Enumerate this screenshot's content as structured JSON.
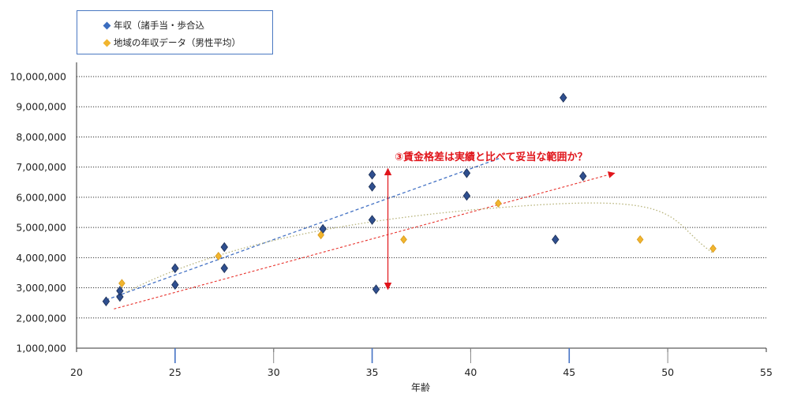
{
  "chart_data": {
    "type": "scatter",
    "xlabel": "年齢",
    "ylabel": "",
    "xlim": [
      20,
      55
    ],
    "ylim": [
      1000000,
      10000000
    ],
    "xticks": [
      "20",
      "25",
      "30",
      "35",
      "40",
      "45",
      "50",
      "55"
    ],
    "yticks": [
      "1,000,000",
      "2,000,000",
      "3,000,000",
      "4,000,000",
      "5,000,000",
      "6,000,000",
      "7,000,000",
      "8,000,000",
      "9,000,000",
      "10,000,000"
    ],
    "grid": "horizontal-dotted",
    "legend_position": "top-left",
    "annotation": "③賃金格差は実績と比べて妥当な範囲か？",
    "series": [
      {
        "name": "年収（諸手当・歩合込",
        "color": "#2f4f8f",
        "marker": "diamond",
        "points": [
          [
            21.5,
            2550000
          ],
          [
            22.2,
            2700000
          ],
          [
            22.2,
            2900000
          ],
          [
            25.0,
            3100000
          ],
          [
            25.0,
            3650000
          ],
          [
            27.5,
            3650000
          ],
          [
            27.5,
            4350000
          ],
          [
            32.5,
            4950000
          ],
          [
            35.0,
            6350000
          ],
          [
            35.0,
            6750000
          ],
          [
            35.0,
            5250000
          ],
          [
            35.2,
            2950000
          ],
          [
            39.8,
            6800000
          ],
          [
            39.8,
            6050000
          ],
          [
            44.3,
            4600000
          ],
          [
            44.7,
            9300000
          ],
          [
            45.7,
            6700000
          ]
        ]
      },
      {
        "name": "地域の年収データ（男性平均）",
        "color": "#f1b52e",
        "marker": "diamond",
        "points": [
          [
            22.3,
            3150000
          ],
          [
            27.2,
            4050000
          ],
          [
            32.4,
            4750000
          ],
          [
            36.6,
            4600000
          ],
          [
            41.4,
            5800000
          ],
          [
            48.6,
            4600000
          ],
          [
            52.3,
            4300000
          ]
        ]
      }
    ],
    "trendlines": [
      {
        "series": "年収（諸手当・歩合込",
        "kind": "linear",
        "color": "#4472c4",
        "from": [
          21.5,
          2600000
        ],
        "to": [
          41.5,
          7300000
        ]
      },
      {
        "series": "reference",
        "kind": "linear-arrow",
        "color": "#e8322c",
        "from": [
          21.9,
          2300000
        ],
        "to": [
          47.3,
          6800000
        ]
      },
      {
        "series": "地域の年収データ（男性平均）",
        "kind": "polynomial",
        "color": "#b7b37a"
      }
    ],
    "range_marker": {
      "x": 35.8,
      "from": 2950000,
      "to": 6950000,
      "color": "#e0151b"
    }
  }
}
